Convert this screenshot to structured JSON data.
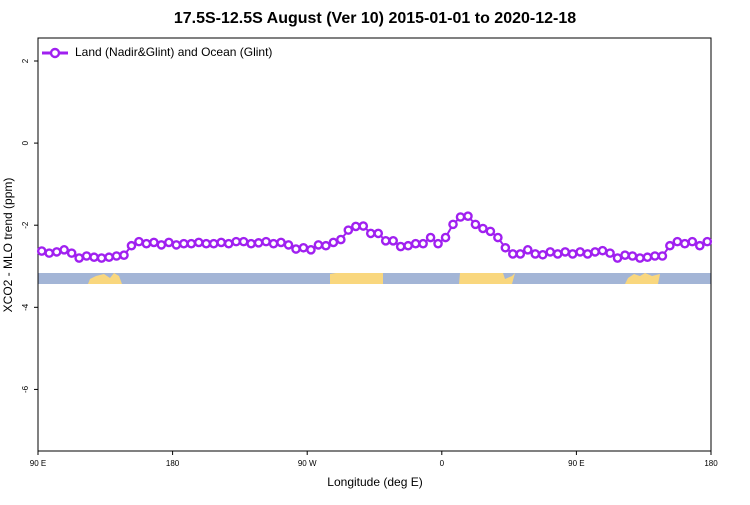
{
  "chart_data": {
    "type": "line",
    "title": "17.5S-12.5S August (Ver 10)   2015-01-01 to 2020-12-18",
    "x_label": "Longitude (deg E)",
    "y_label": "XCO2 - MLO trend (ppm)",
    "xlim": [
      90,
      540
    ],
    "ylim": [
      -7.5,
      2.56
    ],
    "xticks": [
      {
        "value": 90,
        "label": "90 E"
      },
      180,
      {
        "value": 270,
        "label": "90 W"
      },
      {
        "value": 360,
        "label": "0"
      },
      {
        "value": 450,
        "label": "90 E"
      },
      {
        "value": 540,
        "label": "180"
      }
    ],
    "yticks": [
      -6,
      -4,
      -2,
      0,
      2
    ],
    "legend": "top-left",
    "x": [
      92.5,
      97.5,
      102.5,
      107.5,
      112.5,
      117.5,
      122.5,
      127.5,
      132.5,
      137.5,
      142.5,
      147.5,
      152.5,
      157.5,
      162.5,
      167.5,
      172.5,
      177.5,
      182.5,
      187.5,
      192.5,
      197.5,
      202.5,
      207.5,
      212.5,
      217.5,
      222.5,
      227.5,
      232.5,
      237.5,
      242.5,
      247.5,
      252.5,
      257.5,
      262.5,
      267.5,
      272.5,
      277.5,
      282.5,
      287.5,
      292.5,
      297.5,
      302.5,
      307.5,
      312.5,
      317.5,
      322.5,
      327.5,
      332.5,
      337.5,
      342.5,
      347.5,
      352.5,
      357.5,
      362.5,
      367.5,
      372.5,
      377.5,
      382.5,
      387.5,
      392.5,
      397.5,
      402.5,
      407.5,
      412.5,
      417.5,
      422.5,
      427.5,
      432.5,
      437.5,
      442.5,
      447.5,
      452.5,
      457.5,
      462.5,
      467.5,
      472.5,
      477.5,
      482.5,
      487.5,
      492.5,
      497.5,
      502.5,
      507.5,
      512.5,
      517.5,
      522.5,
      527.5,
      532.5,
      537.5
    ],
    "series": [
      {
        "name": "Land (Nadir&Glint) and Ocean (Glint)",
        "color": "#a020f0",
        "values": [
          -2.63,
          -2.68,
          -2.65,
          -2.6,
          -2.68,
          -2.8,
          -2.75,
          -2.78,
          -2.8,
          -2.78,
          -2.75,
          -2.73,
          -2.5,
          -2.4,
          -2.45,
          -2.42,
          -2.48,
          -2.42,
          -2.48,
          -2.45,
          -2.45,
          -2.42,
          -2.45,
          -2.45,
          -2.42,
          -2.45,
          -2.4,
          -2.4,
          -2.45,
          -2.43,
          -2.4,
          -2.45,
          -2.42,
          -2.48,
          -2.58,
          -2.55,
          -2.6,
          -2.48,
          -2.5,
          -2.42,
          -2.35,
          -2.12,
          -2.03,
          -2.02,
          -2.2,
          -2.2,
          -2.38,
          -2.38,
          -2.52,
          -2.5,
          -2.45,
          -2.45,
          -2.3,
          -2.45,
          -2.3,
          -1.98,
          -1.8,
          -1.78,
          -1.98,
          -2.08,
          -2.15,
          -2.3,
          -2.55,
          -2.7,
          -2.7,
          -2.6,
          -2.7,
          -2.72,
          -2.65,
          -2.7,
          -2.65,
          -2.7,
          -2.65,
          -2.7,
          -2.65,
          -2.62,
          -2.68,
          -2.8,
          -2.73,
          -2.75,
          -2.8,
          -2.78,
          -2.75,
          -2.75,
          -2.5,
          -2.4,
          -2.45,
          -2.4,
          -2.5,
          -2.4
        ]
      }
    ]
  }
}
